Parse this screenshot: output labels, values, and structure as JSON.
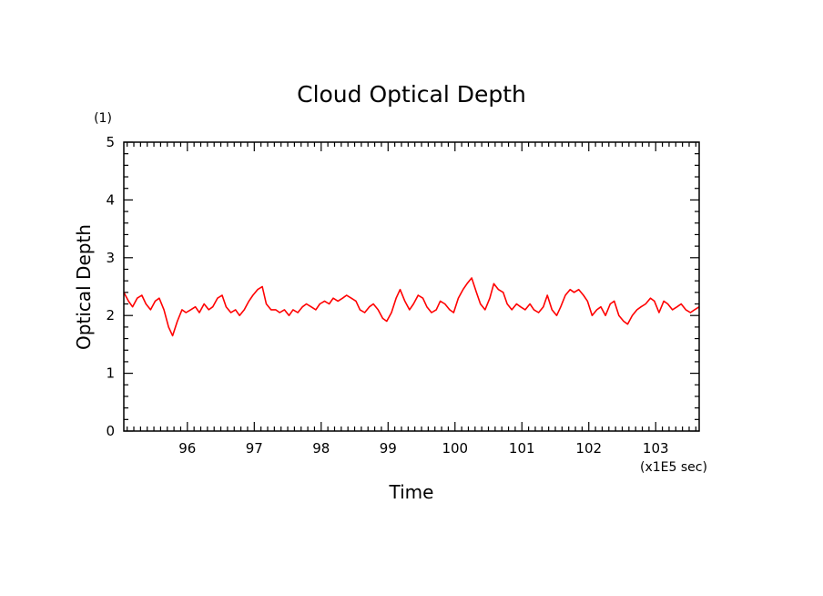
{
  "chart_data": {
    "type": "line",
    "title": "Cloud Optical Depth",
    "xlabel": "Time",
    "ylabel": "Optical Depth",
    "x_unit_label": "(x1E5 sec)",
    "y_unit_label": "(1)",
    "xlim": [
      95.05,
      103.65
    ],
    "ylim": [
      0,
      5
    ],
    "xticks": [
      96,
      97,
      98,
      99,
      100,
      101,
      102,
      103
    ],
    "yticks": [
      0,
      1,
      2,
      3,
      4,
      5
    ],
    "grid": false,
    "series": [
      {
        "color": "#ff0000",
        "x": [
          95.05,
          95.12,
          95.18,
          95.25,
          95.32,
          95.38,
          95.45,
          95.52,
          95.58,
          95.65,
          95.72,
          95.78,
          95.85,
          95.92,
          95.98,
          96.05,
          96.12,
          96.18,
          96.25,
          96.32,
          96.38,
          96.45,
          96.52,
          96.58,
          96.65,
          96.72,
          96.78,
          96.85,
          96.92,
          96.98,
          97.05,
          97.12,
          97.18,
          97.25,
          97.32,
          97.38,
          97.45,
          97.52,
          97.58,
          97.65,
          97.72,
          97.78,
          97.85,
          97.92,
          97.98,
          98.05,
          98.12,
          98.18,
          98.25,
          98.32,
          98.38,
          98.45,
          98.52,
          98.58,
          98.65,
          98.72,
          98.78,
          98.85,
          98.92,
          98.98,
          99.05,
          99.12,
          99.18,
          99.25,
          99.32,
          99.38,
          99.45,
          99.52,
          99.58,
          99.65,
          99.72,
          99.78,
          99.85,
          99.92,
          99.98,
          100.05,
          100.12,
          100.18,
          100.25,
          100.32,
          100.38,
          100.45,
          100.52,
          100.58,
          100.65,
          100.72,
          100.78,
          100.85,
          100.92,
          100.98,
          101.05,
          101.12,
          101.18,
          101.25,
          101.32,
          101.38,
          101.45,
          101.52,
          101.58,
          101.65,
          101.72,
          101.78,
          101.85,
          101.92,
          101.98,
          102.05,
          102.12,
          102.18,
          102.25,
          102.32,
          102.38,
          102.45,
          102.52,
          102.58,
          102.65,
          102.72,
          102.78,
          102.85,
          102.92,
          102.98,
          103.05,
          103.12,
          103.18,
          103.25,
          103.32,
          103.38,
          103.45,
          103.52,
          103.58,
          103.65
        ],
        "y": [
          2.4,
          2.25,
          2.15,
          2.3,
          2.35,
          2.2,
          2.1,
          2.25,
          2.3,
          2.1,
          1.8,
          1.65,
          1.9,
          2.1,
          2.05,
          2.1,
          2.15,
          2.05,
          2.2,
          2.1,
          2.15,
          2.3,
          2.35,
          2.15,
          2.05,
          2.1,
          2.0,
          2.1,
          2.25,
          2.35,
          2.45,
          2.5,
          2.2,
          2.1,
          2.1,
          2.05,
          2.1,
          2.0,
          2.1,
          2.05,
          2.15,
          2.2,
          2.15,
          2.1,
          2.2,
          2.25,
          2.2,
          2.3,
          2.25,
          2.3,
          2.35,
          2.3,
          2.25,
          2.1,
          2.05,
          2.15,
          2.2,
          2.1,
          1.95,
          1.9,
          2.05,
          2.3,
          2.45,
          2.25,
          2.1,
          2.2,
          2.35,
          2.3,
          2.15,
          2.05,
          2.1,
          2.25,
          2.2,
          2.1,
          2.05,
          2.3,
          2.45,
          2.55,
          2.65,
          2.4,
          2.2,
          2.1,
          2.3,
          2.55,
          2.45,
          2.4,
          2.2,
          2.1,
          2.2,
          2.15,
          2.1,
          2.2,
          2.1,
          2.05,
          2.15,
          2.35,
          2.1,
          2.0,
          2.15,
          2.35,
          2.45,
          2.4,
          2.45,
          2.35,
          2.25,
          2.0,
          2.1,
          2.15,
          2.0,
          2.2,
          2.25,
          2.0,
          1.9,
          1.85,
          2.0,
          2.1,
          2.15,
          2.2,
          2.3,
          2.25,
          2.05,
          2.25,
          2.2,
          2.1,
          2.15,
          2.2,
          2.1,
          2.05,
          2.1,
          2.15
        ]
      }
    ]
  }
}
